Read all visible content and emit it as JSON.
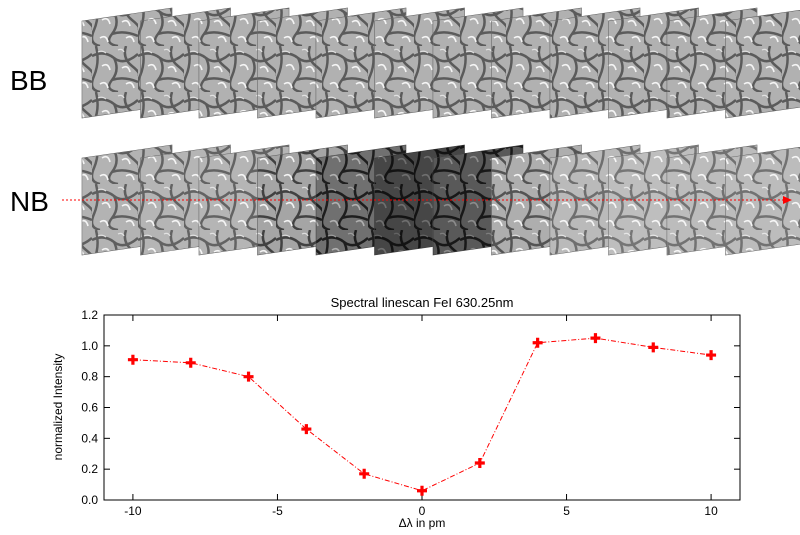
{
  "rows": {
    "bb_label": "BB",
    "nb_label": "NB",
    "frame_count": 12,
    "nb_frame_brightness": [
      0.78,
      0.8,
      0.8,
      0.62,
      0.32,
      0.14,
      0.22,
      0.72,
      0.86,
      0.9,
      0.88,
      0.88
    ]
  },
  "colors": {
    "accent": "#ff0000",
    "frame_dark": "#1a1a1a",
    "frame_light": "#e6e6e6"
  },
  "chart_data": {
    "type": "line",
    "title": "Spectral linescan FeI 630.25nm",
    "xlabel": "Δλ in pm",
    "ylabel": "normalized Intensity",
    "xlim": [
      -11,
      11
    ],
    "ylim": [
      0.0,
      1.2
    ],
    "xticks": [
      -10,
      -5,
      0,
      5,
      10
    ],
    "yticks": [
      0.0,
      0.2,
      0.4,
      0.6,
      0.8,
      1.0,
      1.2
    ],
    "xtick_labels": [
      "-10",
      "-5",
      "0",
      "5",
      "10"
    ],
    "ytick_labels": [
      "0.0",
      "0.2",
      "0.4",
      "0.6",
      "0.8",
      "1.0",
      "1.2"
    ],
    "x": [
      -10,
      -8,
      -6,
      -4,
      -2,
      0,
      2,
      4,
      6,
      8,
      10
    ],
    "y": [
      0.91,
      0.89,
      0.8,
      0.46,
      0.17,
      0.06,
      0.24,
      1.02,
      1.05,
      0.99,
      0.94
    ],
    "line_style": "dash-dot",
    "marker": "plus",
    "grid": false
  }
}
